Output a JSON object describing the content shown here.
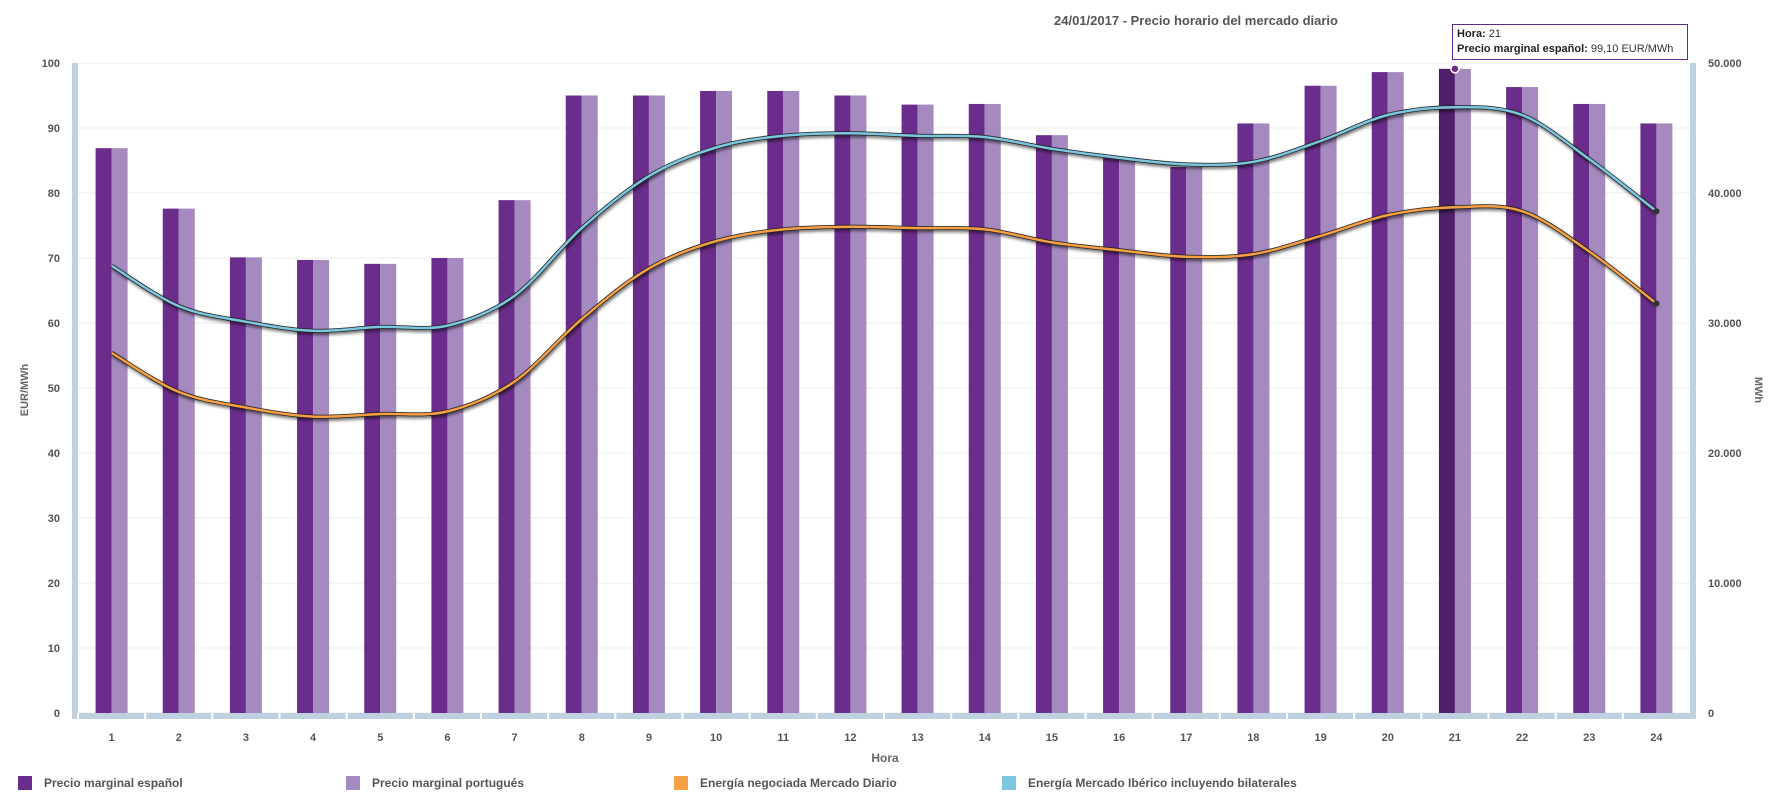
{
  "chart_data": {
    "type": "bar",
    "title": "24/01/2017 - Precio horario del mercado diario",
    "xlabel": "Hora",
    "ylabel": "EUR/MWh",
    "y2label": "MWh",
    "ylim": [
      0,
      100
    ],
    "y2lim": [
      0,
      50000
    ],
    "y_ticks": [
      "0",
      "10",
      "20",
      "30",
      "40",
      "50",
      "60",
      "70",
      "80",
      "90",
      "100"
    ],
    "y2_ticks": [
      "0",
      "10.000",
      "20.000",
      "30.000",
      "40.000",
      "50.000"
    ],
    "categories": [
      "1",
      "2",
      "3",
      "4",
      "5",
      "6",
      "7",
      "8",
      "9",
      "10",
      "11",
      "12",
      "13",
      "14",
      "15",
      "16",
      "17",
      "18",
      "19",
      "20",
      "21",
      "22",
      "23",
      "24"
    ],
    "grid": true,
    "legend_position": "bottom-left",
    "series": [
      {
        "name": "Precio marginal español",
        "type": "bar",
        "axis": "left",
        "color": "#6b2d8b",
        "values": [
          86.9,
          77.6,
          70.1,
          69.7,
          69.1,
          70.0,
          78.9,
          95.0,
          95.0,
          95.7,
          95.7,
          95.0,
          93.6,
          93.7,
          88.9,
          85.5,
          84.0,
          90.7,
          96.5,
          98.6,
          99.1,
          96.3,
          93.7,
          90.7
        ]
      },
      {
        "name": "Precio marginal portugués",
        "type": "bar",
        "axis": "left",
        "color": "#a58abf",
        "values": [
          86.9,
          77.6,
          70.1,
          69.7,
          69.1,
          70.0,
          78.9,
          95.0,
          95.0,
          95.7,
          95.7,
          95.0,
          93.6,
          93.7,
          88.9,
          85.5,
          84.0,
          90.7,
          96.5,
          98.6,
          99.1,
          96.3,
          93.7,
          90.7
        ]
      },
      {
        "name": "Energía negociada Mercado Diario",
        "type": "line",
        "axis": "right",
        "color": "#f5a045",
        "values": [
          27700,
          24700,
          23500,
          22800,
          23000,
          23200,
          25500,
          30300,
          34200,
          36300,
          37200,
          37400,
          37300,
          37200,
          36200,
          35600,
          35100,
          35300,
          36700,
          38300,
          38900,
          38600,
          35500,
          31500
        ]
      },
      {
        "name": "Energía Mercado Ibérico incluyendo bilaterales",
        "type": "line",
        "axis": "right",
        "color": "#7cc6e0",
        "values": [
          34400,
          31300,
          30100,
          29400,
          29700,
          29800,
          32100,
          37300,
          41300,
          43500,
          44400,
          44600,
          44400,
          44300,
          43400,
          42700,
          42200,
          42400,
          44000,
          46000,
          46600,
          46000,
          42600,
          38600
        ]
      }
    ]
  },
  "tooltip": {
    "label1": "Hora:",
    "value1": "21",
    "label2": "Precio marginal español:",
    "value2": "99,10 EUR/MWh"
  }
}
